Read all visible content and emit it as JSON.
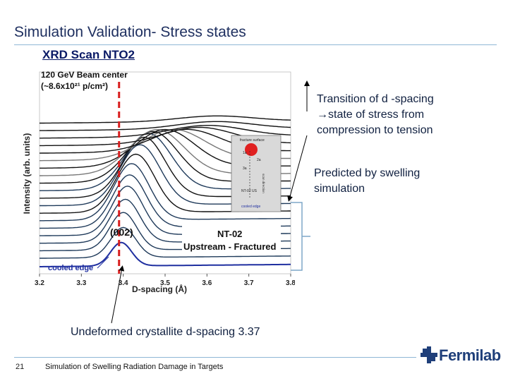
{
  "slide": {
    "title": "Simulation Validation- Stress states",
    "subtitle": "XRD Scan NTO2",
    "page_number": "21",
    "footer": "Simulation of Swelling Radiation Damage in Targets",
    "logo_text": "Fermilab"
  },
  "annotations": {
    "transition_line1": "Transition of d -spacing",
    "transition_line2": "→state of stress from",
    "transition_line3": "compression to tension",
    "predicted_line1": "Predicted by swelling",
    "predicted_line2": "simulation",
    "undeformed": "Undeformed crystallite d-spacing 3.37"
  },
  "colors": {
    "title": "#1f3060",
    "cooled_curve": "#1f2fa0",
    "curve_dark": "#111111",
    "curve_blue": "#1f3a5a",
    "dashed_line": "#d81e1e",
    "inset_dot": "#e02020"
  },
  "chart_data": {
    "type": "line",
    "xlabel": "D-spacing (Å)",
    "ylabel": "Intensity (arb. units)",
    "xlim": [
      3.2,
      3.8
    ],
    "xticks": [
      "3.2",
      "3.3",
      "3.4",
      "3.5",
      "3.6",
      "3.7",
      "3.8"
    ],
    "beam_label_line1": "120 GeV Beam center",
    "beam_label_line2": "(~8.6x10²¹ p/cm²)",
    "beam_center_x": 3.39,
    "peak_label": "(002)",
    "sample_label": "NT-02",
    "condition_label": "Upstream - Fractured",
    "cooled_label": "cooled edge",
    "inset_labels": {
      "top": "fracture surface",
      "side1": "1a",
      "side2": "2a",
      "side3": "3a",
      "bottom_id": "NT-02 US",
      "edge": "cooled edge",
      "scan": "scan direction"
    },
    "curves": [
      {
        "offset": 0.0,
        "peak_x": 3.395,
        "amp": 0.125,
        "width": 0.025,
        "style": "cooled"
      },
      {
        "offset": 0.045,
        "peak_x": 3.4,
        "amp": 0.16,
        "width": 0.03,
        "style": "blue"
      },
      {
        "offset": 0.085,
        "peak_x": 3.4,
        "amp": 0.2,
        "width": 0.032,
        "style": "blue"
      },
      {
        "offset": 0.125,
        "peak_x": 3.405,
        "amp": 0.23,
        "width": 0.035,
        "style": "blue"
      },
      {
        "offset": 0.165,
        "peak_x": 3.41,
        "amp": 0.26,
        "width": 0.037,
        "style": "blue"
      },
      {
        "offset": 0.205,
        "peak_x": 3.415,
        "amp": 0.28,
        "width": 0.04,
        "style": "blue"
      },
      {
        "offset": 0.245,
        "peak_x": 3.42,
        "amp": 0.3,
        "width": 0.042,
        "style": "blue"
      },
      {
        "offset": 0.285,
        "peak_x": 3.43,
        "amp": 0.31,
        "width": 0.045,
        "style": "dark"
      },
      {
        "offset": 0.325,
        "peak_x": 3.44,
        "amp": 0.32,
        "width": 0.048,
        "style": "blue"
      },
      {
        "offset": 0.365,
        "peak_x": 3.45,
        "amp": 0.32,
        "width": 0.05,
        "style": "dark"
      },
      {
        "offset": 0.405,
        "peak_x": 3.46,
        "amp": 0.3,
        "width": 0.055,
        "style": "blue"
      },
      {
        "offset": 0.445,
        "peak_x": 3.47,
        "amp": 0.27,
        "width": 0.06,
        "style": "dark"
      },
      {
        "offset": 0.485,
        "peak_x": 3.48,
        "amp": 0.24,
        "width": 0.065,
        "style": "gray"
      },
      {
        "offset": 0.525,
        "peak_x": 3.5,
        "amp": 0.2,
        "width": 0.07,
        "style": "dark"
      },
      {
        "offset": 0.565,
        "peak_x": 3.52,
        "amp": 0.16,
        "width": 0.075,
        "style": "gray"
      },
      {
        "offset": 0.605,
        "peak_x": 3.55,
        "amp": 0.12,
        "width": 0.08,
        "style": "dark"
      },
      {
        "offset": 0.645,
        "peak_x": 3.58,
        "amp": 0.09,
        "width": 0.085,
        "style": "dark"
      },
      {
        "offset": 0.685,
        "peak_x": 3.6,
        "amp": 0.06,
        "width": 0.09,
        "style": "dark"
      },
      {
        "offset": 0.725,
        "peak_x": 3.62,
        "amp": 0.04,
        "width": 0.09,
        "style": "dark"
      },
      {
        "offset": 0.765,
        "peak_x": 3.62,
        "amp": 0.03,
        "width": 0.09,
        "style": "dark"
      }
    ]
  }
}
